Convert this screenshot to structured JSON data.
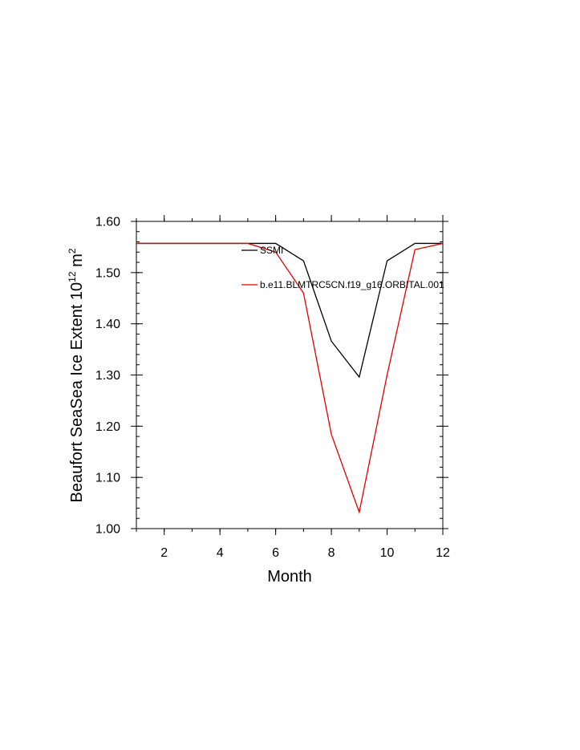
{
  "chart_data": {
    "type": "line",
    "title": "",
    "xlabel": "Month",
    "ylabel": {
      "base": "Beaufort SeaSea Ice Extent 10",
      "exp": "12",
      "unit": " m",
      "unit_exp": "2"
    },
    "xlim": [
      1,
      12
    ],
    "ylim": [
      1.0,
      1.6
    ],
    "x_ticks": [
      "2",
      "4",
      "6",
      "8",
      "10",
      "12"
    ],
    "y_ticks": [
      "1.00",
      "1.10",
      "1.20",
      "1.30",
      "1.40",
      "1.50",
      "1.60"
    ],
    "legend_position": "top-right",
    "x": [
      1,
      2,
      3,
      4,
      5,
      6,
      7,
      8,
      9,
      10,
      11,
      12
    ],
    "series": [
      {
        "name": "SSMI",
        "color": "#000000",
        "values": [
          1.557,
          1.557,
          1.557,
          1.557,
          1.557,
          1.557,
          1.523,
          1.366,
          1.296,
          1.523,
          1.557,
          1.557
        ]
      },
      {
        "name": "b.e11.BLMTRC5CN.f19_g16.ORBITAL.001",
        "color": "#e00000",
        "values": [
          1.557,
          1.557,
          1.557,
          1.557,
          1.557,
          1.54,
          1.46,
          1.184,
          1.032,
          1.3,
          1.545,
          1.557
        ]
      }
    ]
  }
}
